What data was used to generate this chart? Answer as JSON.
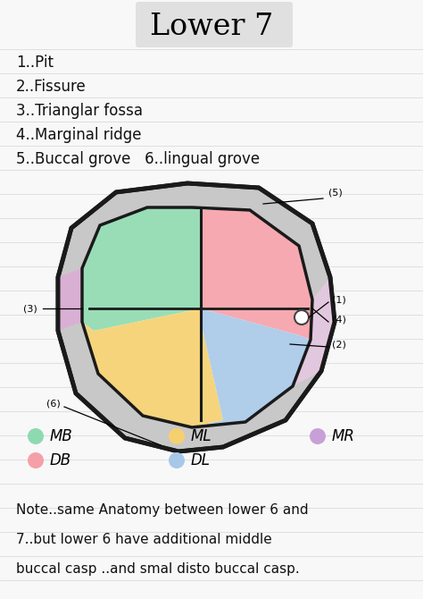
{
  "title": "Lower 7",
  "background_color": "#f8f8f8",
  "list_items": [
    "1..Pit",
    "2..Fissure",
    "3..Trianglar fossa",
    "4..Marginal ridge",
    "5..Buccal grove   6..lingual grove"
  ],
  "note_text": "Note..same Anatomy between lower 6 and\n7..but lower 6 have additional middle\nbuccal casp ..and smal disto buccal casp.",
  "colors": {
    "green": "#8EDAB0",
    "pink": "#F5A0A8",
    "yellow": "#F5D06E",
    "blue": "#A8C8E8",
    "lavender": "#E0A8D8",
    "lavender_light": "#EEC8E8",
    "outer_gray": "#C8C8C8",
    "line": "#1a1a1a"
  },
  "legend": [
    {
      "label": "MB",
      "color": "#8EDAB0",
      "col": 0
    },
    {
      "label": "DB",
      "color": "#F5A0A8",
      "col": 0
    },
    {
      "label": "ML",
      "color": "#F5D06E",
      "col": 1
    },
    {
      "label": "DL",
      "color": "#A8C8E8",
      "col": 1
    },
    {
      "label": "MR",
      "color": "#C8A0D8",
      "col": 2
    }
  ]
}
